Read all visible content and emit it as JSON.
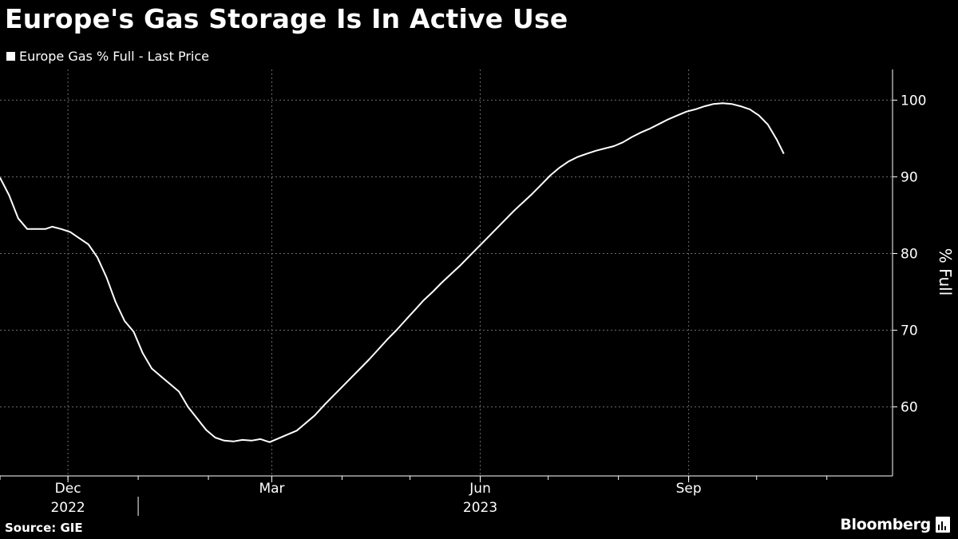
{
  "title": "Europe's Gas Storage Is In Active Use",
  "legend": {
    "label": "Europe Gas % Full - Last Price",
    "color": "#ffffff"
  },
  "source": "Source: GIE",
  "brand": {
    "name": "Bloomberg",
    "icon": "bloomberg-chart-icon"
  },
  "chart_data": {
    "type": "line",
    "title": "Europe's Gas Storage Is In Active Use",
    "xlabel": "",
    "ylabel": "% Full",
    "ylim": [
      51,
      104
    ],
    "y_ticks": [
      60,
      70,
      80,
      90,
      100
    ],
    "x_tick_labels": [
      {
        "month": "Dec",
        "year": "2022",
        "date": "2022-12-01"
      },
      {
        "month": "Mar",
        "year": "",
        "date": "2023-03-01"
      },
      {
        "month": "Jun",
        "year": "2023",
        "date": "2023-06-01"
      },
      {
        "month": "Sep",
        "year": "",
        "date": "2023-09-01"
      }
    ],
    "x_range": [
      "2022-11-01",
      "2023-11-30"
    ],
    "grid": true,
    "legend_position": "top-left",
    "series": [
      {
        "name": "Europe Gas % Full - Last Price",
        "color": "#ffffff",
        "points": [
          [
            "2022-11-01",
            89.9
          ],
          [
            "2022-11-05",
            87.6
          ],
          [
            "2022-11-09",
            84.6
          ],
          [
            "2022-11-13",
            83.2
          ],
          [
            "2022-11-17",
            83.2
          ],
          [
            "2022-11-21",
            83.2
          ],
          [
            "2022-11-24",
            83.5
          ],
          [
            "2022-11-28",
            83.2
          ],
          [
            "2022-12-02",
            82.8
          ],
          [
            "2022-12-06",
            82.0
          ],
          [
            "2022-12-10",
            81.2
          ],
          [
            "2022-12-14",
            79.5
          ],
          [
            "2022-12-18",
            76.9
          ],
          [
            "2022-12-22",
            73.7
          ],
          [
            "2022-12-26",
            71.2
          ],
          [
            "2022-12-30",
            69.8
          ],
          [
            "2023-01-03",
            67.0
          ],
          [
            "2023-01-07",
            65.0
          ],
          [
            "2023-01-11",
            64.0
          ],
          [
            "2023-01-15",
            63.0
          ],
          [
            "2023-01-19",
            62.0
          ],
          [
            "2023-01-23",
            60.0
          ],
          [
            "2023-01-27",
            58.5
          ],
          [
            "2023-01-31",
            57.0
          ],
          [
            "2023-02-04",
            56.0
          ],
          [
            "2023-02-08",
            55.6
          ],
          [
            "2023-02-12",
            55.5
          ],
          [
            "2023-02-16",
            55.7
          ],
          [
            "2023-02-20",
            55.6
          ],
          [
            "2023-02-24",
            55.8
          ],
          [
            "2023-02-28",
            55.4
          ],
          [
            "2023-03-04",
            55.9
          ],
          [
            "2023-03-08",
            56.4
          ],
          [
            "2023-03-12",
            56.9
          ],
          [
            "2023-03-16",
            57.9
          ],
          [
            "2023-03-20",
            58.9
          ],
          [
            "2023-03-24",
            60.2
          ],
          [
            "2023-03-28",
            61.4
          ],
          [
            "2023-04-01",
            62.6
          ],
          [
            "2023-04-05",
            63.8
          ],
          [
            "2023-04-09",
            65.0
          ],
          [
            "2023-04-13",
            66.2
          ],
          [
            "2023-04-17",
            67.5
          ],
          [
            "2023-04-21",
            68.8
          ],
          [
            "2023-04-25",
            70.0
          ],
          [
            "2023-04-29",
            71.3
          ],
          [
            "2023-05-03",
            72.6
          ],
          [
            "2023-05-07",
            73.9
          ],
          [
            "2023-05-11",
            75.0
          ],
          [
            "2023-05-15",
            76.2
          ],
          [
            "2023-05-19",
            77.3
          ],
          [
            "2023-05-23",
            78.4
          ],
          [
            "2023-05-27",
            79.6
          ],
          [
            "2023-05-31",
            80.8
          ],
          [
            "2023-06-04",
            82.0
          ],
          [
            "2023-06-08",
            83.2
          ],
          [
            "2023-06-12",
            84.4
          ],
          [
            "2023-06-16",
            85.6
          ],
          [
            "2023-06-20",
            86.7
          ],
          [
            "2023-06-24",
            87.8
          ],
          [
            "2023-06-28",
            89.0
          ],
          [
            "2023-07-02",
            90.2
          ],
          [
            "2023-07-06",
            91.2
          ],
          [
            "2023-07-10",
            92.0
          ],
          [
            "2023-07-14",
            92.6
          ],
          [
            "2023-07-18",
            93.0
          ],
          [
            "2023-07-22",
            93.4
          ],
          [
            "2023-07-26",
            93.7
          ],
          [
            "2023-07-30",
            94.0
          ],
          [
            "2023-08-03",
            94.5
          ],
          [
            "2023-08-07",
            95.2
          ],
          [
            "2023-08-11",
            95.8
          ],
          [
            "2023-08-15",
            96.3
          ],
          [
            "2023-08-19",
            96.9
          ],
          [
            "2023-08-23",
            97.5
          ],
          [
            "2023-08-27",
            98.0
          ],
          [
            "2023-08-31",
            98.5
          ],
          [
            "2023-09-04",
            98.8
          ],
          [
            "2023-09-08",
            99.2
          ],
          [
            "2023-09-12",
            99.5
          ],
          [
            "2023-09-16",
            99.6
          ],
          [
            "2023-09-20",
            99.5
          ],
          [
            "2023-09-24",
            99.2
          ],
          [
            "2023-09-28",
            98.8
          ],
          [
            "2023-10-02",
            98.0
          ],
          [
            "2023-10-06",
            96.8
          ],
          [
            "2023-10-10",
            94.8
          ],
          [
            "2023-10-13",
            93.0
          ]
        ]
      }
    ]
  }
}
